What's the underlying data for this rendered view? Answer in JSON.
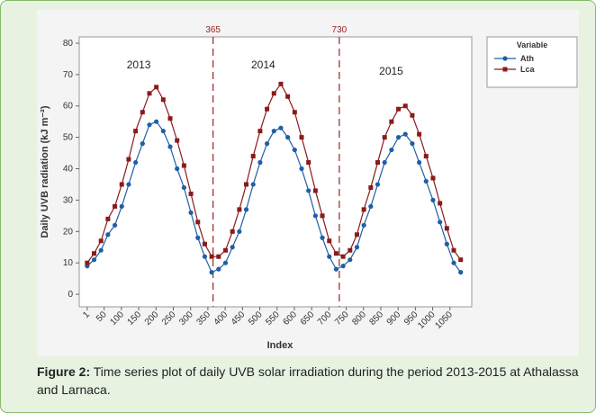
{
  "chart_data": {
    "type": "line",
    "x_label": "Index",
    "y_label": "Daily UVB radiation (kJ m⁻²)",
    "legend_title": "Variable",
    "legend_position": "right",
    "x": [
      1,
      21,
      41,
      61,
      81,
      101,
      121,
      141,
      161,
      181,
      201,
      221,
      241,
      261,
      281,
      301,
      321,
      341,
      361,
      381,
      401,
      421,
      441,
      461,
      481,
      501,
      521,
      541,
      561,
      581,
      601,
      621,
      641,
      661,
      681,
      701,
      721,
      741,
      761,
      781,
      801,
      821,
      841,
      861,
      881,
      901,
      921,
      941,
      961,
      981,
      1001,
      1021,
      1041,
      1061,
      1081
    ],
    "series": [
      {
        "name": "Ath",
        "color": "#1f5fa6",
        "marker": "circle",
        "values": [
          9,
          11,
          14,
          19,
          22,
          28,
          35,
          42,
          48,
          54,
          55,
          52,
          47,
          40,
          34,
          26,
          18,
          12,
          7,
          8,
          10,
          15,
          20,
          27,
          35,
          42,
          48,
          52,
          53,
          50,
          46,
          40,
          33,
          25,
          18,
          12,
          8,
          9,
          11,
          15,
          22,
          28,
          35,
          42,
          46,
          50,
          51,
          48,
          42,
          36,
          30,
          23,
          16,
          10,
          7
        ]
      },
      {
        "name": "Lca",
        "color": "#8b1a1a",
        "marker": "square",
        "values": [
          10,
          13,
          17,
          24,
          28,
          35,
          43,
          52,
          58,
          64,
          66,
          62,
          56,
          49,
          41,
          32,
          23,
          16,
          12,
          12,
          14,
          20,
          27,
          35,
          44,
          52,
          59,
          64,
          67,
          63,
          58,
          50,
          42,
          33,
          25,
          17,
          13,
          12,
          14,
          19,
          27,
          34,
          42,
          50,
          55,
          59,
          60,
          57,
          51,
          44,
          37,
          29,
          21,
          14,
          11
        ]
      }
    ],
    "reference_lines": [
      365,
      730
    ],
    "annotations": [
      "2013",
      "2014",
      "2015"
    ],
    "xlim": [
      -22,
      1113
    ],
    "ylim": [
      -4,
      82
    ],
    "xticks": [
      1,
      50,
      100,
      150,
      200,
      250,
      300,
      350,
      400,
      450,
      500,
      550,
      600,
      650,
      700,
      750,
      800,
      850,
      900,
      950,
      1000,
      1050
    ],
    "yticks": [
      0,
      10,
      20,
      30,
      40,
      50,
      60,
      70,
      80
    ]
  },
  "caption": {
    "label": "Figure 2:",
    "text": "Time series plot of daily UVB solar irradiation during the period 2013-2015 at Athalassa and Larnaca."
  }
}
